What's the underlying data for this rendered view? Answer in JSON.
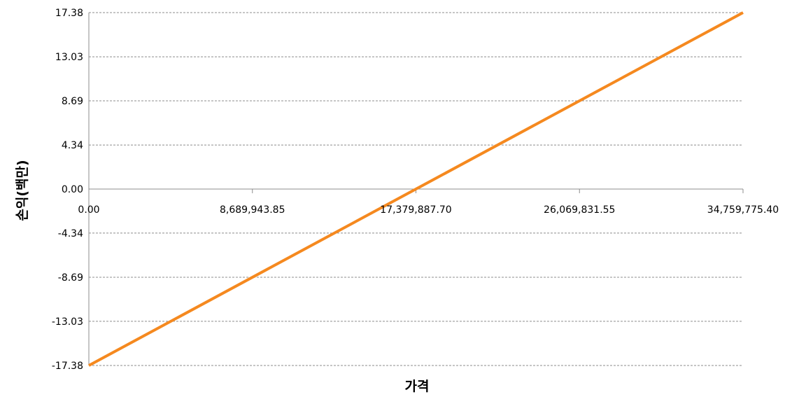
{
  "chart_data": {
    "type": "line",
    "xlabel": "가격",
    "ylabel": "손익(백만)",
    "xlim": [
      0,
      34759775.4
    ],
    "ylim": [
      -17.38,
      17.38
    ],
    "x_ticks": [
      0,
      8689943.85,
      17379887.7,
      26069831.55,
      34759775.4
    ],
    "x_tick_labels": [
      "0.00",
      "8,689,943.85",
      "17,379,887.70",
      "26,069,831.55",
      "34,759,775.40"
    ],
    "y_ticks": [
      17.38,
      13.03,
      8.69,
      4.34,
      0.0,
      -4.34,
      -8.69,
      -13.03,
      -17.38
    ],
    "y_tick_labels": [
      "17.38",
      "13.03",
      "8.69",
      "4.34",
      "0.00",
      "-4.34",
      "-8.69",
      "-13.03",
      "-17.38"
    ],
    "grid": true,
    "legend": "none",
    "series": [
      {
        "color": "#F5891F",
        "x": [
          0,
          34759775.4
        ],
        "y": [
          -17.38,
          17.38
        ]
      }
    ]
  }
}
